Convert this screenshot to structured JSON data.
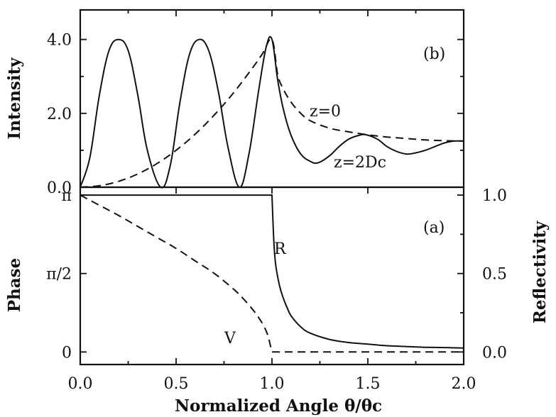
{
  "chart_data": [
    {
      "panel": "(b)",
      "type": "line",
      "ylabel": "Intensity",
      "xlim": [
        0.0,
        2.0
      ],
      "ylim": [
        0.0,
        4.8
      ],
      "y_ticks": [
        "0.0",
        "2.0",
        "4.0"
      ],
      "y_tick_values": [
        0.0,
        2.0,
        4.0
      ],
      "series": [
        {
          "name": "z=2Dc",
          "style": "solid",
          "x": [
            0.0,
            0.05,
            0.1,
            0.15,
            0.2,
            0.25,
            0.3,
            0.35,
            0.42,
            0.47,
            0.52,
            0.57,
            0.62,
            0.67,
            0.72,
            0.77,
            0.83,
            0.88,
            0.93,
            0.97,
            1.0,
            1.03,
            1.06,
            1.1,
            1.15,
            1.2,
            1.24,
            1.3,
            1.35,
            1.4,
            1.45,
            1.49,
            1.55,
            1.6,
            1.65,
            1.7,
            1.74,
            1.8,
            1.85,
            1.9,
            1.95,
            2.0
          ],
          "y": [
            0.0,
            0.8,
            2.5,
            3.7,
            4.0,
            3.7,
            2.5,
            1.0,
            0.0,
            0.6,
            2.3,
            3.6,
            4.0,
            3.7,
            2.6,
            1.1,
            0.0,
            0.9,
            2.6,
            3.8,
            4.0,
            2.9,
            2.1,
            1.4,
            0.9,
            0.7,
            0.66,
            0.85,
            1.1,
            1.3,
            1.4,
            1.42,
            1.3,
            1.1,
            0.97,
            0.9,
            0.92,
            1.0,
            1.1,
            1.2,
            1.25,
            1.25
          ]
        },
        {
          "name": "z=0",
          "style": "dashed",
          "x": [
            0.0,
            0.1,
            0.2,
            0.3,
            0.4,
            0.5,
            0.6,
            0.7,
            0.8,
            0.9,
            0.95,
            1.0,
            1.03,
            1.06,
            1.1,
            1.15,
            1.2,
            1.3,
            1.4,
            1.5,
            1.6,
            1.7,
            1.8,
            1.9,
            2.0
          ],
          "y": [
            0.0,
            0.04,
            0.16,
            0.36,
            0.64,
            1.0,
            1.44,
            1.96,
            2.56,
            3.24,
            3.61,
            4.0,
            3.05,
            2.65,
            2.3,
            2.0,
            1.8,
            1.6,
            1.5,
            1.42,
            1.36,
            1.32,
            1.28,
            1.26,
            1.25
          ]
        }
      ],
      "annotations": [
        "(b)",
        "z=0",
        "z=2Dc"
      ]
    },
    {
      "panel": "(a)",
      "type": "line",
      "ylabel": "Phase",
      "y2label": "Reflectivity",
      "xlabel": "Normalized Angle θ/θc",
      "xlim": [
        0.0,
        2.0
      ],
      "x_ticks": [
        "0.0",
        "0.5",
        "1.0",
        "1.5",
        "2.0"
      ],
      "x_tick_values": [
        0.0,
        0.5,
        1.0,
        1.5,
        2.0
      ],
      "ylim_left": [
        -0.08,
        1.05
      ],
      "y_ticks_left": [
        "0",
        "π/2",
        "π"
      ],
      "y_tick_values_left": [
        0.0,
        0.5,
        1.0
      ],
      "ylim_right": [
        -0.08,
        1.05
      ],
      "y_ticks_right": [
        "0.0",
        "0.5",
        "1.0"
      ],
      "y_tick_values_right": [
        0.0,
        0.5,
        1.0
      ],
      "series": [
        {
          "name": "R",
          "style": "solid",
          "x": [
            0.0,
            0.5,
            0.995,
            1.0,
            1.01,
            1.02,
            1.04,
            1.06,
            1.08,
            1.1,
            1.15,
            1.2,
            1.3,
            1.4,
            1.5,
            1.6,
            1.7,
            1.8,
            1.9,
            2.0
          ],
          "y": [
            1.0,
            1.0,
            1.0,
            1.0,
            0.7,
            0.55,
            0.42,
            0.34,
            0.28,
            0.23,
            0.16,
            0.12,
            0.08,
            0.06,
            0.05,
            0.04,
            0.035,
            0.03,
            0.028,
            0.025
          ]
        },
        {
          "name": "V",
          "style": "dashed",
          "x": [
            0.0,
            0.1,
            0.2,
            0.3,
            0.4,
            0.5,
            0.6,
            0.7,
            0.8,
            0.85,
            0.9,
            0.93,
            0.96,
            0.98,
            0.99,
            1.0,
            1.2,
            1.5,
            2.0
          ],
          "y": [
            1.0,
            0.935,
            0.87,
            0.8,
            0.73,
            0.66,
            0.58,
            0.5,
            0.4,
            0.34,
            0.27,
            0.22,
            0.16,
            0.1,
            0.05,
            0.0,
            0.0,
            0.0,
            0.0
          ]
        }
      ],
      "annotations": [
        "(a)",
        "R",
        "V"
      ]
    }
  ]
}
